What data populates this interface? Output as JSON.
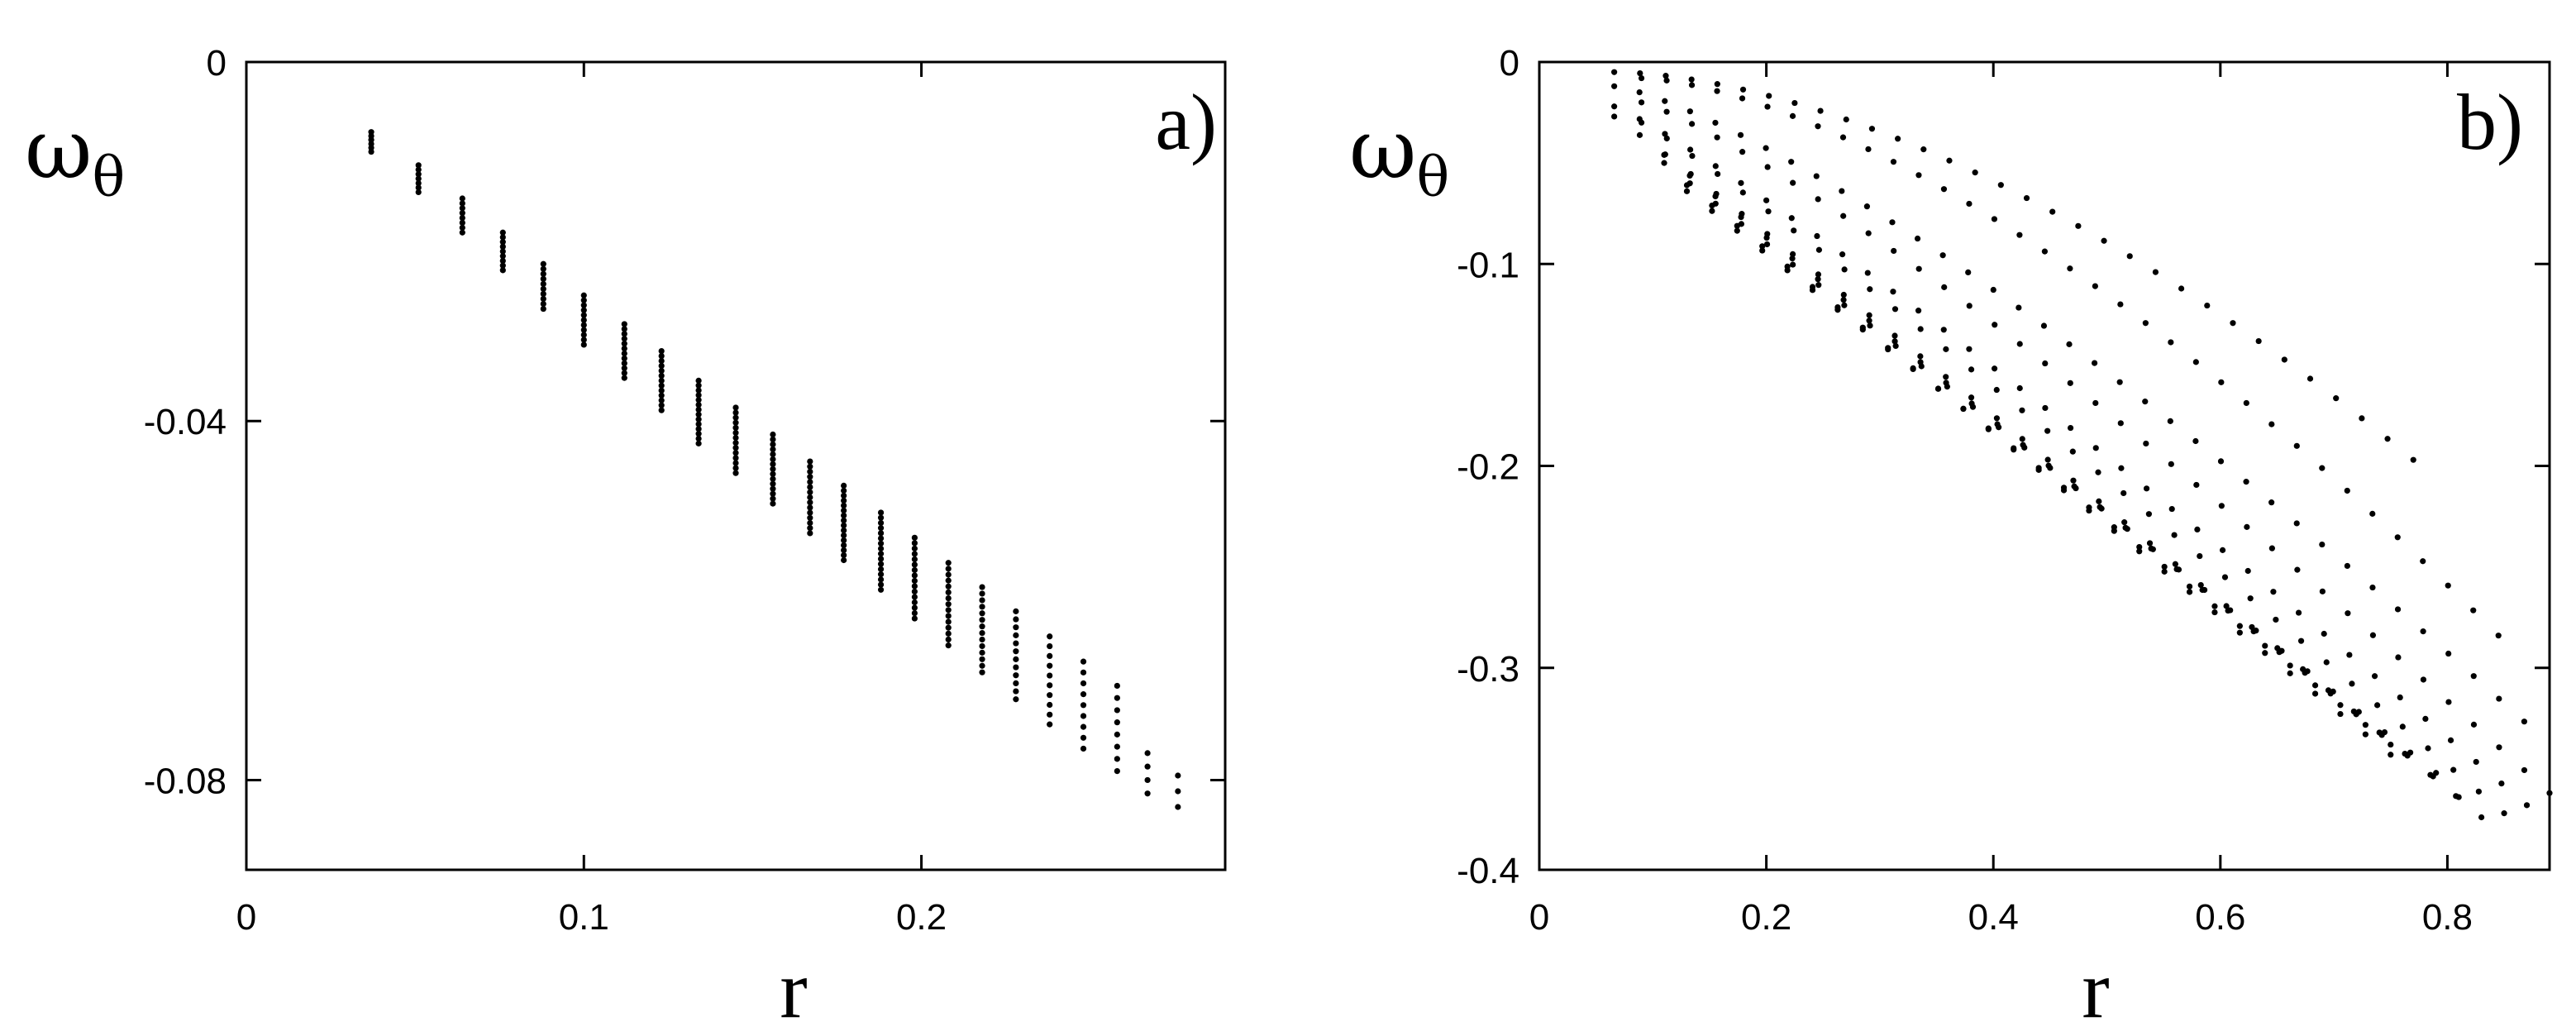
{
  "chart_data": [
    {
      "type": "scatter",
      "panel_label": "a)",
      "xlabel": "r",
      "ylabel": "ω",
      "ylabel_sub": "θ",
      "xlim": [
        0,
        0.29
      ],
      "ylim": [
        -0.09,
        0
      ],
      "xticks": [
        0,
        0.1,
        0.2
      ],
      "xtick_labels": [
        "0",
        "0.1",
        "0.2"
      ],
      "yticks": [
        0,
        -0.04,
        -0.08
      ],
      "ytick_labels": [
        "0",
        "-0.04",
        "-0.08"
      ],
      "columns": [
        {
          "r": 0.037,
          "y_top": -0.0078,
          "y_bottom": -0.01,
          "n": 6
        },
        {
          "r": 0.051,
          "y_top": -0.0115,
          "y_bottom": -0.0145,
          "n": 7
        },
        {
          "r": 0.064,
          "y_top": -0.0152,
          "y_bottom": -0.019,
          "n": 8
        },
        {
          "r": 0.076,
          "y_top": -0.019,
          "y_bottom": -0.0232,
          "n": 9
        },
        {
          "r": 0.088,
          "y_top": -0.0225,
          "y_bottom": -0.0275,
          "n": 10
        },
        {
          "r": 0.1,
          "y_top": -0.026,
          "y_bottom": -0.0315,
          "n": 11
        },
        {
          "r": 0.112,
          "y_top": -0.0292,
          "y_bottom": -0.0352,
          "n": 12
        },
        {
          "r": 0.123,
          "y_top": -0.0322,
          "y_bottom": -0.0388,
          "n": 13
        },
        {
          "r": 0.134,
          "y_top": -0.0355,
          "y_bottom": -0.0425,
          "n": 14
        },
        {
          "r": 0.145,
          "y_top": -0.0385,
          "y_bottom": -0.0458,
          "n": 14
        },
        {
          "r": 0.156,
          "y_top": -0.0415,
          "y_bottom": -0.0492,
          "n": 15
        },
        {
          "r": 0.167,
          "y_top": -0.0445,
          "y_bottom": -0.0525,
          "n": 15
        },
        {
          "r": 0.177,
          "y_top": -0.0472,
          "y_bottom": -0.0555,
          "n": 16
        },
        {
          "r": 0.188,
          "y_top": -0.0502,
          "y_bottom": -0.0588,
          "n": 16
        },
        {
          "r": 0.198,
          "y_top": -0.053,
          "y_bottom": -0.062,
          "n": 16
        },
        {
          "r": 0.208,
          "y_top": -0.0558,
          "y_bottom": -0.065,
          "n": 15
        },
        {
          "r": 0.218,
          "y_top": -0.0585,
          "y_bottom": -0.068,
          "n": 14
        },
        {
          "r": 0.228,
          "y_top": -0.0612,
          "y_bottom": -0.071,
          "n": 12
        },
        {
          "r": 0.238,
          "y_top": -0.064,
          "y_bottom": -0.0738,
          "n": 10
        },
        {
          "r": 0.248,
          "y_top": -0.0668,
          "y_bottom": -0.0765,
          "n": 9
        },
        {
          "r": 0.258,
          "y_top": -0.0695,
          "y_bottom": -0.079,
          "n": 8
        },
        {
          "r": 0.267,
          "y_top": -0.077,
          "y_bottom": -0.0815,
          "n": 4
        },
        {
          "r": 0.276,
          "y_top": -0.0795,
          "y_bottom": -0.083,
          "n": 3
        }
      ]
    },
    {
      "type": "scatter",
      "panel_label": "b)",
      "xlabel": "r",
      "ylabel": "ω",
      "ylabel_sub": "θ",
      "xlim": [
        0,
        0.89
      ],
      "ylim": [
        -0.4,
        0
      ],
      "xticks": [
        0,
        0.2,
        0.4,
        0.6,
        0.8
      ],
      "xtick_labels": [
        "0",
        "0.2",
        "0.4",
        "0.6",
        "0.8"
      ],
      "yticks": [
        0,
        -0.1,
        -0.2,
        -0.3,
        -0.4
      ],
      "ytick_labels": [
        "0",
        "-0.1",
        "-0.2",
        "-0.3",
        "-0.4"
      ],
      "curves": [
        {
          "r_start": 0.066,
          "r_end": 0.77,
          "y_start": -0.005,
          "y_end": -0.197,
          "exponent": 1.7
        },
        {
          "r_start": 0.09,
          "r_end": 0.845,
          "y_start": -0.008,
          "y_end": -0.284,
          "exponent": 1.55
        },
        {
          "r_start": 0.066,
          "r_end": 0.89,
          "y_start": -0.012,
          "y_end": -0.338,
          "exponent": 1.3
        },
        {
          "r_start": 0.09,
          "r_end": 0.89,
          "y_start": -0.02,
          "y_end": -0.362,
          "exponent": 1.2
        },
        {
          "r_start": 0.066,
          "r_end": 0.87,
          "y_start": -0.022,
          "y_end": -0.368,
          "exponent": 1.12
        },
        {
          "r_start": 0.09,
          "r_end": 0.85,
          "y_start": -0.03,
          "y_end": -0.372,
          "exponent": 1.07
        },
        {
          "r_start": 0.066,
          "r_end": 0.83,
          "y_start": -0.027,
          "y_end": -0.374,
          "exponent": 1.03
        },
        {
          "r_start": 0.11,
          "r_end": 0.81,
          "y_start": -0.046,
          "y_end": -0.364,
          "exponent": 1.0
        },
        {
          "r_start": 0.11,
          "r_end": 0.79,
          "y_start": -0.05,
          "y_end": -0.352,
          "exponent": 1.0
        },
        {
          "r_start": 0.13,
          "r_end": 0.75,
          "y_start": -0.061,
          "y_end": -0.343,
          "exponent": 1.0
        },
        {
          "r_start": 0.13,
          "r_end": 0.75,
          "y_start": -0.064,
          "y_end": -0.338,
          "exponent": 1.0
        }
      ],
      "curve_step": 0.0225
    }
  ]
}
